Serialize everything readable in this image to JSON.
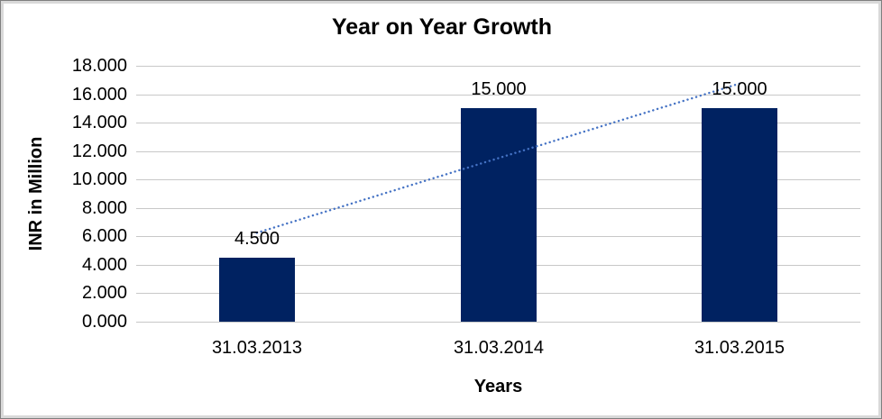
{
  "chart_data": {
    "type": "bar",
    "title": "Year on Year Growth",
    "xlabel": "Years",
    "ylabel": "INR in Million",
    "categories": [
      "31.03.2013",
      "31.03.2014",
      "31.03.2015"
    ],
    "values": [
      4.5,
      15.0,
      15.0
    ],
    "data_labels": [
      "4.500",
      "15.000",
      "15.000"
    ],
    "y_tick_values": [
      0,
      2,
      4,
      6,
      8,
      10,
      12,
      14,
      16,
      18
    ],
    "y_tick_labels": [
      "0.000",
      "2.000",
      "4.000",
      "6.000",
      "8.000",
      "10.000",
      "12.000",
      "14.000",
      "16.000",
      "18.000"
    ],
    "ylim": [
      0,
      18
    ],
    "grid": "horizontal-on",
    "legend": "none",
    "bar_color": "#002261",
    "gridline_color": "#c8c8c8",
    "trendline": {
      "type": "linear",
      "style": "dotted",
      "color": "#4472C4",
      "start_value": 6.25,
      "end_value": 16.75
    }
  }
}
